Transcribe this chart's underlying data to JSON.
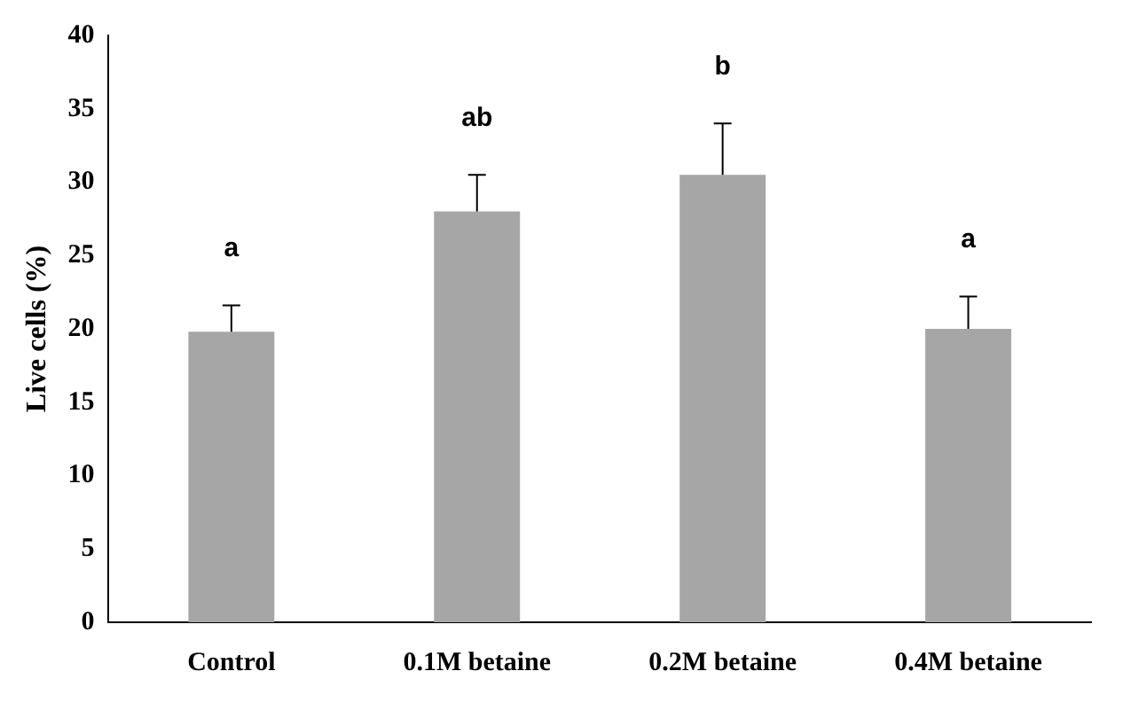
{
  "chart_data": {
    "type": "bar",
    "ylabel": "Live cells (%)",
    "categories": [
      "Control",
      "0.1M betaine",
      "0.2M betaine",
      "0.4M betaine"
    ],
    "values": [
      19.8,
      28,
      30.5,
      20
    ],
    "errors": [
      [
        19.8,
        21.6
      ],
      [
        28,
        30.5
      ],
      [
        30.5,
        34
      ],
      [
        20,
        22.2
      ]
    ],
    "color": "#a6a6a6",
    "ylim": [
      0,
      40
    ],
    "yticks": [
      0,
      5,
      10,
      15,
      20,
      25,
      30,
      35,
      40
    ],
    "grid": false,
    "annotations": [
      "a",
      "ab",
      "b",
      "a"
    ]
  }
}
